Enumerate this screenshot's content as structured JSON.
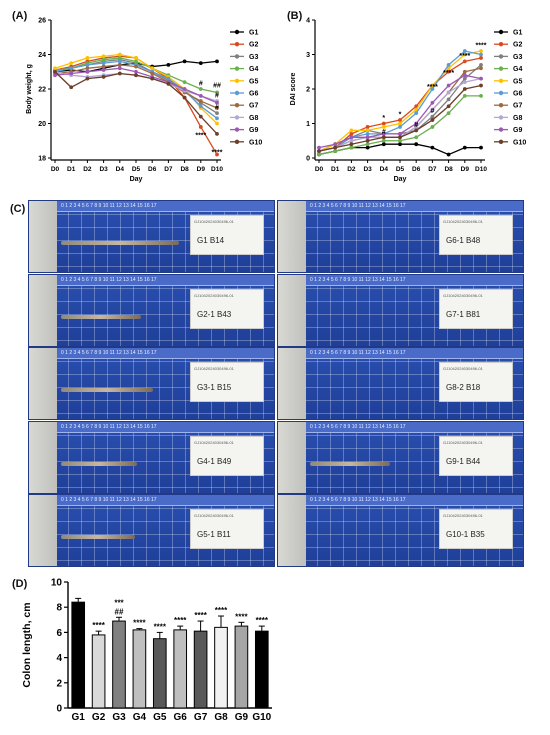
{
  "panels": {
    "a": "(A)",
    "b": "(B)",
    "c": "(C)",
    "d": "(D)"
  },
  "chart_data": [
    {
      "type": "line",
      "id": "A",
      "xlabel": "Day",
      "ylabel": "Body weight, g",
      "categories": [
        "D0",
        "D1",
        "D2",
        "D3",
        "D4",
        "D5",
        "D6",
        "D7",
        "D8",
        "D9",
        "D10"
      ],
      "ylim": [
        18,
        26
      ],
      "yticks": [
        18,
        20,
        22,
        24,
        26
      ],
      "series": [
        {
          "name": "G1",
          "color": "#000000",
          "values": [
            23.0,
            23.1,
            23.0,
            23.2,
            23.4,
            23.5,
            23.3,
            23.4,
            23.6,
            23.5,
            23.6
          ]
        },
        {
          "name": "G2",
          "color": "#d94a1c",
          "values": [
            23.1,
            23.3,
            23.6,
            23.8,
            23.9,
            23.8,
            23.2,
            22.6,
            21.5,
            19.8,
            18.2
          ]
        },
        {
          "name": "G3",
          "color": "#7f7f7f",
          "values": [
            23.0,
            23.2,
            23.4,
            23.6,
            23.7,
            23.5,
            23.0,
            22.5,
            21.9,
            21.2,
            20.6
          ]
        },
        {
          "name": "G4",
          "color": "#6ab04c",
          "values": [
            23.1,
            23.2,
            23.5,
            23.7,
            23.8,
            23.6,
            23.2,
            22.8,
            22.4,
            22.0,
            21.8
          ]
        },
        {
          "name": "G5",
          "color": "#ffc000",
          "values": [
            23.2,
            23.5,
            23.8,
            23.9,
            24.0,
            23.8,
            23.2,
            22.7,
            22.0,
            20.9,
            20.0
          ]
        },
        {
          "name": "G6",
          "color": "#5b9bd5",
          "values": [
            23.0,
            23.2,
            23.4,
            23.5,
            23.6,
            23.4,
            23.0,
            22.6,
            21.9,
            21.0,
            20.3
          ]
        },
        {
          "name": "G7",
          "color": "#9e6a3f",
          "values": [
            22.9,
            23.0,
            23.2,
            23.3,
            23.4,
            23.3,
            22.9,
            22.4,
            21.8,
            21.3,
            20.9
          ]
        },
        {
          "name": "G8",
          "color": "#b4a7d6",
          "values": [
            23.0,
            22.8,
            22.7,
            22.8,
            22.9,
            22.8,
            22.6,
            22.3,
            21.9,
            21.6,
            21.3
          ]
        },
        {
          "name": "G9",
          "color": "#9b59b6",
          "values": [
            22.8,
            22.9,
            23.0,
            23.1,
            23.2,
            23.0,
            22.7,
            22.4,
            22.0,
            21.6,
            21.2
          ]
        },
        {
          "name": "G10",
          "color": "#6b3f2a",
          "values": [
            23.0,
            22.1,
            22.6,
            22.7,
            22.9,
            22.8,
            22.6,
            22.3,
            21.5,
            20.4,
            19.4
          ]
        }
      ],
      "annotations": [
        {
          "text": "****",
          "x": 10,
          "y": 18.2
        },
        {
          "text": "****",
          "x": 9,
          "y": 19.2
        },
        {
          "text": "#",
          "x": 9,
          "y": 22.2
        },
        {
          "text": "##",
          "x": 10,
          "y": 22.1
        },
        {
          "text": "#",
          "x": 10,
          "y": 21.5
        },
        {
          "text": "#",
          "x": 10,
          "y": 20.8
        }
      ]
    },
    {
      "type": "line",
      "id": "B",
      "xlabel": "Day",
      "ylabel": "DAI score",
      "categories": [
        "D0",
        "D1",
        "D2",
        "D3",
        "D4",
        "D5",
        "D6",
        "D7",
        "D8",
        "D9",
        "D10"
      ],
      "ylim": [
        0,
        4
      ],
      "yticks": [
        0,
        1,
        2,
        3,
        4
      ],
      "series": [
        {
          "name": "G1",
          "color": "#000000",
          "values": [
            0.1,
            0.2,
            0.3,
            0.3,
            0.4,
            0.4,
            0.4,
            0.3,
            0.1,
            0.3,
            0.3
          ]
        },
        {
          "name": "G2",
          "color": "#d94a1c",
          "values": [
            0.2,
            0.3,
            0.7,
            0.9,
            1.0,
            1.1,
            1.5,
            2.1,
            2.5,
            2.8,
            2.9
          ]
        },
        {
          "name": "G3",
          "color": "#7f7f7f",
          "values": [
            0.2,
            0.4,
            0.6,
            0.8,
            0.7,
            0.7,
            0.8,
            1.2,
            1.7,
            2.3,
            2.7
          ]
        },
        {
          "name": "G4",
          "color": "#6ab04c",
          "values": [
            0.1,
            0.2,
            0.3,
            0.4,
            0.5,
            0.5,
            0.6,
            0.9,
            1.3,
            1.8,
            1.8
          ]
        },
        {
          "name": "G5",
          "color": "#ffc000",
          "values": [
            0.2,
            0.4,
            0.8,
            0.8,
            0.9,
            1.0,
            1.4,
            2.1,
            2.6,
            3.0,
            3.1
          ]
        },
        {
          "name": "G6",
          "color": "#5b9bd5",
          "values": [
            0.2,
            0.3,
            0.6,
            0.7,
            0.7,
            0.9,
            1.3,
            2.0,
            2.7,
            3.1,
            3.0
          ]
        },
        {
          "name": "G7",
          "color": "#9e6a3f",
          "values": [
            0.2,
            0.3,
            0.5,
            0.6,
            0.6,
            0.6,
            0.9,
            1.4,
            1.9,
            2.5,
            2.6
          ]
        },
        {
          "name": "G8",
          "color": "#b4a7d6",
          "values": [
            0.2,
            0.3,
            0.5,
            0.6,
            0.6,
            0.6,
            0.9,
            1.4,
            1.9,
            2.2,
            2.3
          ]
        },
        {
          "name": "G9",
          "color": "#9b59b6",
          "values": [
            0.3,
            0.4,
            0.6,
            0.6,
            0.7,
            0.7,
            1.0,
            1.6,
            2.1,
            2.4,
            2.3
          ]
        },
        {
          "name": "G10",
          "color": "#6b3f2a",
          "values": [
            0.2,
            0.3,
            0.4,
            0.5,
            0.6,
            0.6,
            0.8,
            1.1,
            1.5,
            2.0,
            2.1
          ]
        }
      ],
      "annotations": [
        {
          "text": "****",
          "x": 10,
          "y": 3.2
        },
        {
          "text": "****",
          "x": 9,
          "y": 2.9
        },
        {
          "text": "****",
          "x": 8,
          "y": 2.4
        },
        {
          "text": "****",
          "x": 7,
          "y": 2.0
        },
        {
          "text": "*",
          "x": 5,
          "y": 1.2
        },
        {
          "text": "*",
          "x": 4,
          "y": 1.1
        },
        {
          "text": "#",
          "x": 7,
          "y": 1.3
        },
        {
          "text": "#",
          "x": 6,
          "y": 0.9
        },
        {
          "text": "#",
          "x": 4,
          "y": 0.7
        }
      ]
    },
    {
      "type": "bar",
      "id": "D",
      "ylabel": "Colon length, cm",
      "categories": [
        "G1",
        "G2",
        "G3",
        "G4",
        "G5",
        "G6",
        "G7",
        "G8",
        "G9",
        "G10"
      ],
      "values": [
        8.4,
        5.8,
        6.9,
        6.2,
        5.5,
        6.2,
        6.1,
        6.4,
        6.5,
        6.1
      ],
      "errors": [
        0.3,
        0.3,
        0.3,
        0.1,
        0.5,
        0.3,
        0.8,
        0.9,
        0.3,
        0.4
      ],
      "colors": [
        "#000000",
        "#d9d9d9",
        "#808080",
        "#bfbfbf",
        "#595959",
        "#bfbfbf",
        "#595959",
        "#f2f2f2",
        "#a6a6a6",
        "#000000"
      ],
      "ylim": [
        0,
        10
      ],
      "yticks": [
        0,
        2,
        4,
        6,
        8,
        10
      ],
      "labels": [
        "",
        "****",
        "***",
        "****",
        "****",
        "****",
        "****",
        "****",
        "****",
        "****"
      ],
      "labels2": [
        "",
        "",
        "##",
        "",
        "",
        "",
        "",
        "",
        "",
        ""
      ]
    }
  ],
  "photos": [
    {
      "group": "G1",
      "id": "G1   B14",
      "ruler": "0  1  2  3  4  5  6  7  8  9  10  11  12  13  14  15  16  17",
      "note": "GJ1042024030496-01",
      "colon": 118
    },
    {
      "group": "G6",
      "id": "G6-1   B48",
      "ruler": "0  1  2  3  4  5  6  7  8  9  10  11  12  13  14  15  16  17",
      "note": "GJ1042024030496-01",
      "colon": 0
    },
    {
      "group": "G2",
      "id": "G2-1   B43",
      "ruler": "0  1  2  3  4  5  6  7  8  9  10  11  12  13  14  15  16  17",
      "note": "GJ1042024030496-01",
      "colon": 80
    },
    {
      "group": "G7",
      "id": "G7-1   B81",
      "ruler": "0  1  2  3  4  5  6  7  8  9  10  11  12  13  14  15  16  17",
      "note": "GJ1042024030496-01",
      "colon": 0
    },
    {
      "group": "G3",
      "id": "G3-1   B15",
      "ruler": "0  1  2  3  4  5  6  7  8  9  10  11  12  13  14  15  16  17",
      "note": "GJ1042024030496-01",
      "colon": 92
    },
    {
      "group": "G8",
      "id": "G8-2   B18",
      "ruler": "0  1  2  3  4  5  6  7  8  9  10  11  12  13  14  15  16  17",
      "note": "GJ1042024030496-01",
      "colon": 0
    },
    {
      "group": "G4",
      "id": "G4-1   B49",
      "ruler": "0  1  2  3  4  5  6  7  8  9  10  11  12  13  14  15  16  17",
      "note": "GJ1042024030496-01",
      "colon": 76
    },
    {
      "group": "G9",
      "id": "G9-1   B44",
      "ruler": "0  1  2  3  4  5  6  7  8  9  10  11  12  13  14  15  16  17",
      "note": "GJ1042024030496-01",
      "colon": 80
    },
    {
      "group": "G5",
      "id": "G5-1   B11",
      "ruler": "0  1  2  3  4  5  6  7  8  9  10  11  12  13  14  15  16  17",
      "note": "GJ1042024030496-01",
      "colon": 74
    },
    {
      "group": "G10",
      "id": "G10-1      B35",
      "ruler": "0  1  2  3  4  5  6  7  8  9  10  11  12  13  14  15  16  17",
      "note": "GJ1042024030496-01",
      "colon": 0
    }
  ]
}
